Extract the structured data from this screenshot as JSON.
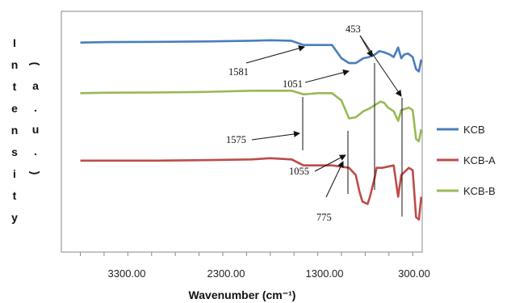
{
  "chart_data": {
    "type": "line",
    "title": "",
    "xlabel": "Wavenumber (cm⁻¹)",
    "ylabel": "Intensity (a.u.)",
    "ylabel_column_1": [
      "I",
      "n",
      "t",
      "e",
      "n",
      "s",
      "i",
      "t",
      "y"
    ],
    "ylabel_column_2": [
      "(",
      "a",
      ".",
      "u",
      ".",
      ")"
    ],
    "x_reversed": true,
    "xlim": [
      4000,
      200
    ],
    "xticks": [
      3300,
      2300,
      1300,
      300
    ],
    "xtick_labels": [
      "3300.00",
      "2300.00",
      "1300.00",
      "300.00"
    ],
    "ylim": [
      0,
      10
    ],
    "grid": false,
    "legend_position": "right",
    "series": [
      {
        "name": "KCB",
        "color": "#4a7ebb",
        "x": [
          3800,
          3500,
          3000,
          2500,
          2000,
          1800,
          1581,
          1450,
          1300,
          1150,
          1050,
          970,
          900,
          820,
          760,
          700,
          650,
          600,
          540,
          500,
          453,
          420,
          390,
          350,
          300,
          265,
          235,
          210
        ],
        "y": [
          8.7,
          8.72,
          8.73,
          8.75,
          8.78,
          8.8,
          8.78,
          8.6,
          8.6,
          8.6,
          8.05,
          7.85,
          7.85,
          8.05,
          8.1,
          8.2,
          8.35,
          8.3,
          8.2,
          8.1,
          8.5,
          8.05,
          8.2,
          8.25,
          8.1,
          7.6,
          7.5,
          8.0
        ]
      },
      {
        "name": "KCB-A",
        "color": "#be4b48",
        "x": [
          3800,
          3500,
          3000,
          2500,
          2000,
          1800,
          1575,
          1450,
          1300,
          1150,
          1055,
          970,
          900,
          860,
          830,
          775,
          750,
          700,
          680,
          620,
          560,
          500,
          453,
          420,
          380,
          340,
          300,
          265,
          235,
          210
        ],
        "y": [
          3.8,
          3.8,
          3.8,
          3.82,
          3.85,
          3.9,
          3.85,
          3.6,
          3.6,
          3.6,
          3.55,
          3.5,
          3.2,
          2.5,
          2.1,
          2.0,
          2.3,
          3.1,
          3.5,
          3.5,
          3.55,
          3.6,
          2.3,
          3.2,
          3.35,
          3.5,
          3.4,
          1.45,
          1.35,
          2.3
        ]
      },
      {
        "name": "KCB-B",
        "color": "#98b954",
        "x": [
          3800,
          3500,
          3000,
          2500,
          2000,
          1800,
          1575,
          1450,
          1300,
          1150,
          1051,
          970,
          900,
          820,
          760,
          700,
          640,
          600,
          560,
          500,
          453,
          420,
          380,
          340,
          300,
          265,
          235,
          210
        ],
        "y": [
          6.6,
          6.62,
          6.63,
          6.65,
          6.7,
          6.7,
          6.7,
          6.55,
          6.6,
          6.6,
          6.3,
          5.55,
          5.6,
          5.85,
          5.95,
          6.1,
          6.25,
          6.2,
          6.0,
          5.85,
          5.45,
          5.9,
          5.95,
          6.0,
          5.9,
          4.7,
          4.6,
          5.1
        ]
      }
    ],
    "annotations": [
      {
        "text": "453"
      },
      {
        "text": "1581"
      },
      {
        "text": "1051"
      },
      {
        "text": "1575"
      },
      {
        "text": "1055"
      },
      {
        "text": "775"
      }
    ]
  }
}
